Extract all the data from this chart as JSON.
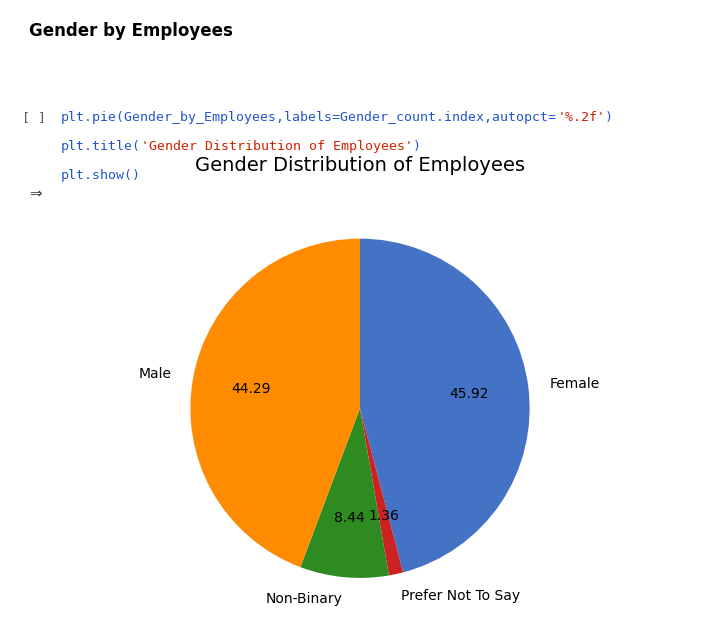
{
  "title": "Gender Distribution of Employees",
  "heading": "Gender by Employees",
  "labels": [
    "Female",
    "Prefer Not To Say",
    "Non-Binary",
    "Male"
  ],
  "sizes": [
    45.92,
    1.36,
    8.44,
    44.29
  ],
  "colors": [
    "#4472C4",
    "#CC2222",
    "#2E8B22",
    "#FF8C00"
  ],
  "bg_color": "#ffffff",
  "code_bg_color": "#ebebeb",
  "title_fontsize": 14,
  "label_fontsize": 10,
  "autopct_fontsize": 10,
  "startangle": 90,
  "pctdistance": 0.65,
  "labeldistance": 1.13
}
